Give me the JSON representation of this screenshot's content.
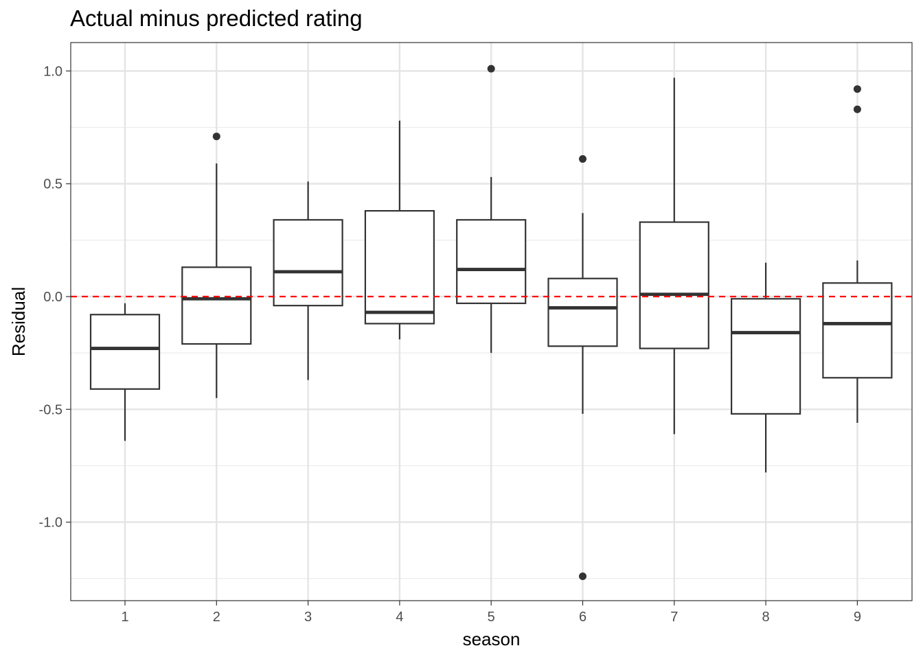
{
  "chart_data": {
    "type": "boxplot",
    "title": "Actual minus predicted rating",
    "xlabel": "season",
    "ylabel": "Residual",
    "categories": [
      "1",
      "2",
      "3",
      "4",
      "5",
      "6",
      "7",
      "8",
      "9"
    ],
    "ylim": [
      -1.35,
      1.12
    ],
    "yticks": [
      -1.0,
      -0.5,
      0.0,
      0.5,
      1.0
    ],
    "ytick_labels": [
      "-1.0",
      "-0.5",
      "0.0",
      "0.5",
      "1.0"
    ],
    "grid": true,
    "reference_line": {
      "y": 0.0,
      "color": "#ff0000",
      "style": "dashed"
    },
    "boxes": [
      {
        "category": "1",
        "whisker_low": -0.64,
        "q1": -0.41,
        "median": -0.23,
        "q3": -0.08,
        "whisker_high": -0.03,
        "outliers": []
      },
      {
        "category": "2",
        "whisker_low": -0.45,
        "q1": -0.21,
        "median": -0.01,
        "q3": 0.13,
        "whisker_high": 0.59,
        "outliers": [
          0.71
        ]
      },
      {
        "category": "3",
        "whisker_low": -0.37,
        "q1": -0.04,
        "median": 0.11,
        "q3": 0.34,
        "whisker_high": 0.51,
        "outliers": []
      },
      {
        "category": "4",
        "whisker_low": -0.19,
        "q1": -0.12,
        "median": -0.07,
        "q3": 0.38,
        "whisker_high": 0.78,
        "outliers": []
      },
      {
        "category": "5",
        "whisker_low": -0.25,
        "q1": -0.03,
        "median": 0.12,
        "q3": 0.34,
        "whisker_high": 0.53,
        "outliers": [
          1.01
        ]
      },
      {
        "category": "6",
        "whisker_low": -0.52,
        "q1": -0.22,
        "median": -0.05,
        "q3": 0.08,
        "whisker_high": 0.37,
        "outliers": [
          0.61,
          -1.24
        ]
      },
      {
        "category": "7",
        "whisker_low": -0.61,
        "q1": -0.23,
        "median": 0.01,
        "q3": 0.33,
        "whisker_high": 0.97,
        "outliers": []
      },
      {
        "category": "8",
        "whisker_low": -0.78,
        "q1": -0.52,
        "median": -0.16,
        "q3": -0.01,
        "whisker_high": 0.15,
        "outliers": []
      },
      {
        "category": "9",
        "whisker_low": -0.56,
        "q1": -0.36,
        "median": -0.12,
        "q3": 0.06,
        "whisker_high": 0.16,
        "outliers": [
          0.92,
          0.83
        ]
      }
    ]
  }
}
